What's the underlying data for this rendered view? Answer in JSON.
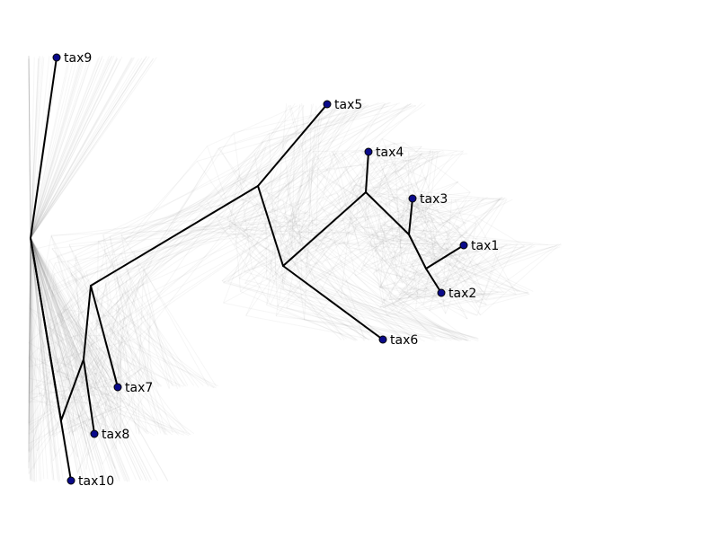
{
  "colors": {
    "background": "#ffffff",
    "consensus_edge": "#000000",
    "tip_node_fill": "#0a0a8a",
    "posterior_cloud": "#7a7a7a"
  },
  "chart_data": {
    "type": "phylogenetic-tree-posterior-cloud",
    "tips": [
      "tax9",
      "tax5",
      "tax4",
      "tax3",
      "tax1",
      "tax2",
      "tax6",
      "tax7",
      "tax8",
      "tax10"
    ],
    "edges": [
      [
        "root",
        "tax9"
      ],
      [
        "root",
        "n_low"
      ],
      [
        "root",
        "tax10"
      ],
      [
        "n_low",
        "n_mid"
      ],
      [
        "n_low",
        "tax8"
      ],
      [
        "n_mid",
        "n_upper"
      ],
      [
        "n_mid",
        "tax7"
      ],
      [
        "n_upper",
        "tax5"
      ],
      [
        "n_upper",
        "n_a"
      ],
      [
        "n_a",
        "n_b"
      ],
      [
        "n_a",
        "tax6"
      ],
      [
        "n_b",
        "tax4"
      ],
      [
        "n_b",
        "n_c"
      ],
      [
        "n_c",
        "tax3"
      ],
      [
        "n_c",
        "n_d"
      ],
      [
        "n_d",
        "tax1"
      ],
      [
        "n_d",
        "tax2"
      ]
    ],
    "axes_visible": false,
    "grid": false
  }
}
